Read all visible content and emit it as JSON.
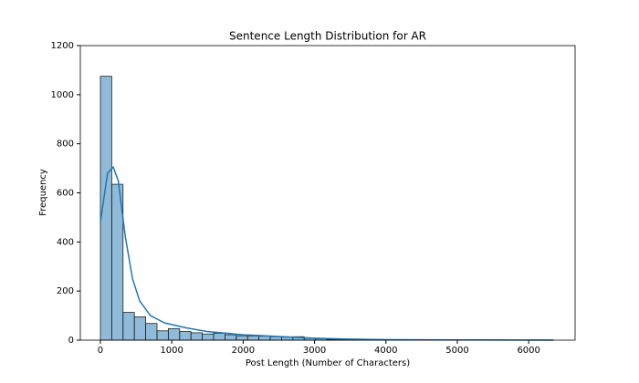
{
  "chart_data": {
    "type": "histogram",
    "title": "Sentence Length Distribution for AR",
    "xlabel": "Post Length (Number of Characters)",
    "ylabel": "Frequency",
    "bins": [
      0,
      158.6,
      317.2,
      475.8,
      634.4,
      793,
      951.6,
      1110.2,
      1268.8,
      1427.4,
      1586,
      1744.6,
      1903.2,
      2061.8,
      2220.4,
      2379,
      2537.6,
      2696.2,
      2854.8,
      3013.4,
      3172,
      3330.6,
      3489.2,
      3647.8,
      3806.4,
      3965,
      4123.6,
      4282.2,
      4440.8,
      4599.4,
      4758,
      4916.6,
      5075.2,
      5233.8,
      5392.4,
      5551,
      5709.6,
      5868.2,
      6026.8,
      6185.4,
      6344
    ],
    "counts": [
      1075,
      635,
      113,
      95,
      68,
      38,
      47,
      35,
      30,
      25,
      28,
      22,
      18,
      17,
      16,
      14,
      12,
      14,
      8,
      6,
      3,
      3,
      3,
      2,
      3,
      2,
      2,
      1,
      1,
      1,
      1,
      1,
      1,
      2,
      1,
      1,
      0,
      0,
      1,
      1
    ],
    "color": "#1f77b4",
    "kde": {
      "x": [
        0,
        100,
        180,
        250,
        350,
        450,
        550,
        700,
        900,
        1200,
        1500,
        2000,
        2500,
        3000,
        3500,
        4000,
        5000,
        6344
      ],
      "values": [
        480,
        680,
        705,
        650,
        420,
        250,
        160,
        100,
        70,
        50,
        35,
        22,
        15,
        8,
        4,
        2,
        1,
        0
      ],
      "color": "#1f77b4"
    },
    "xlim": [
      -281,
      6650
    ],
    "ylim": [
      0,
      1200
    ],
    "xticks": [
      0,
      1000,
      2000,
      3000,
      4000,
      5000,
      6000
    ],
    "yticks": [
      0,
      200,
      400,
      600,
      800,
      1000,
      1200
    ]
  }
}
